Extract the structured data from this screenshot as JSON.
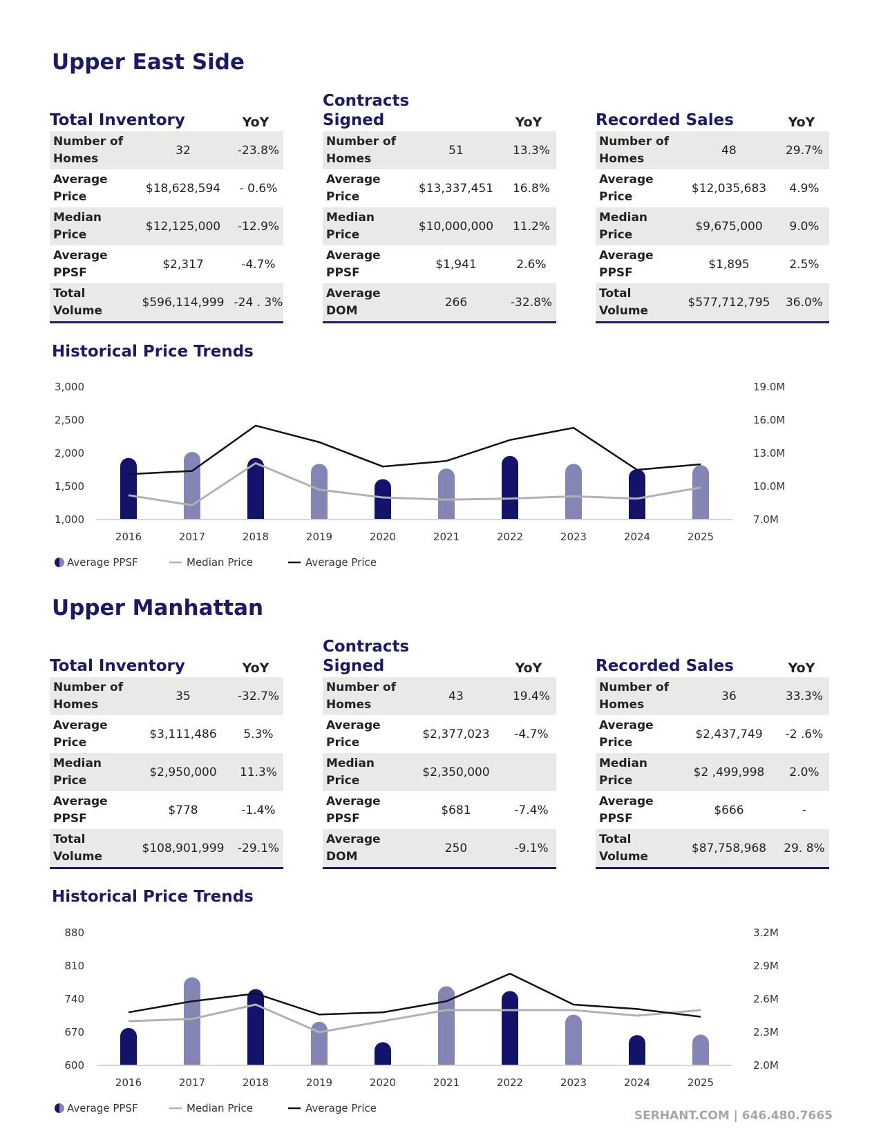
{
  "sections": [
    {
      "name": "Upper East Side",
      "blocks": [
        {
          "title": "Total Inventory",
          "yoy_label": "YoY",
          "rows": [
            {
              "label": "Number of Homes",
              "value": "32",
              "yoy": "-23.8%"
            },
            {
              "label": "Average Price",
              "value": "$18,628,594",
              "yoy": "- 0.6%"
            },
            {
              "label": "Median Price",
              "value": "$12,125,000",
              "yoy": "-12.9%"
            },
            {
              "label": "Average PPSF",
              "value": "$2,317",
              "yoy": "-4.7%"
            },
            {
              "label": "Total Volume",
              "value": "$596,114,999",
              "yoy": "-24 . 3%"
            }
          ]
        },
        {
          "title": "Contracts Signed",
          "yoy_label": "YoY",
          "rows": [
            {
              "label": "Number of Homes",
              "value": "51",
              "yoy": "13.3%"
            },
            {
              "label": "Average Price",
              "value": "$13,337,451",
              "yoy": "16.8%"
            },
            {
              "label": "Median Price",
              "value": "$10,000,000",
              "yoy": "11.2%"
            },
            {
              "label": "Average PPSF",
              "value": "$1,941",
              "yoy": "2.6%"
            },
            {
              "label": "Average DOM",
              "value": "266",
              "yoy": "-32.8%"
            }
          ]
        },
        {
          "title": "Recorded Sales",
          "yoy_label": "YoY",
          "rows": [
            {
              "label": "Number of Homes",
              "value": "48",
              "yoy": "29.7%"
            },
            {
              "label": "Average Price",
              "value": "$12,035,683",
              "yoy": "4.9%"
            },
            {
              "label": "Median Price",
              "value": "$9,675,000",
              "yoy": "9.0%"
            },
            {
              "label": "Average PPSF",
              "value": "$1,895",
              "yoy": "2.5%"
            },
            {
              "label": "Total Volume",
              "value": "$577,712,795",
              "yoy": "36.0%"
            }
          ]
        }
      ],
      "trend_title": "Historical Price Trends"
    },
    {
      "name": "Upper Manhattan",
      "blocks": [
        {
          "title": "Total Inventory",
          "yoy_label": "YoY",
          "rows": [
            {
              "label": "Number of Homes",
              "value": "35",
              "yoy": "-32.7%"
            },
            {
              "label": "Average Price",
              "value": "$3,111,486",
              "yoy": "5.3%"
            },
            {
              "label": "Median Price",
              "value": "$2,950,000",
              "yoy": "11.3%"
            },
            {
              "label": "Average PPSF",
              "value": "$778",
              "yoy": "-1.4%"
            },
            {
              "label": "Total Volume",
              "value": "$108,901,999",
              "yoy": "-29.1%"
            }
          ]
        },
        {
          "title": "Contracts Signed",
          "yoy_label": "YoY",
          "rows": [
            {
              "label": "Number of Homes",
              "value": "43",
              "yoy": "19.4%"
            },
            {
              "label": "Average Price",
              "value": "$2,377,023",
              "yoy": "-4.7%"
            },
            {
              "label": "Median Price",
              "value": "$2,350,000",
              "yoy": ""
            },
            {
              "label": "Average PPSF",
              "value": "$681",
              "yoy": "-7.4%"
            },
            {
              "label": "Average DOM",
              "value": "250",
              "yoy": "-9.1%"
            }
          ]
        },
        {
          "title": "Recorded Sales",
          "yoy_label": "YoY",
          "rows": [
            {
              "label": "Number of Homes",
              "value": "36",
              "yoy": "33.3%"
            },
            {
              "label": "Average Price",
              "value": "$2,437,749",
              "yoy": "-2 .6%"
            },
            {
              "label": "Median Price",
              "value": "$2 ,499,998",
              "yoy": "2.0%"
            },
            {
              "label": "Average PPSF",
              "value": "$666",
              "yoy": "-"
            },
            {
              "label": "Total Volume",
              "value": "$87,758,968",
              "yoy": "29. 8%"
            }
          ]
        }
      ],
      "trend_title": "Historical Price Trends"
    }
  ],
  "chart_data": [
    {
      "type": "bar",
      "title": "Historical Price Trends",
      "categories": [
        "2016",
        "2017",
        "2018",
        "2019",
        "2020",
        "2021",
        "2022",
        "2023",
        "2024",
        "2025"
      ],
      "left_axis": {
        "ticks": [
          "3,000",
          "2,500",
          "2,000",
          "1,500",
          "1,000"
        ],
        "range": [
          1000,
          3000
        ]
      },
      "right_axis": {
        "ticks": [
          "19.0M",
          "16.0M",
          "13.0M",
          "10.0M",
          "7.0M"
        ],
        "range": [
          7.0,
          19.0
        ]
      },
      "series": [
        {
          "name": "Average PPSF",
          "kind": "bar",
          "axis": "left",
          "values": [
            1930,
            2020,
            1930,
            1840,
            1610,
            1770,
            1960,
            1840,
            1760,
            1820
          ]
        },
        {
          "name": "Median Price",
          "kind": "line",
          "axis": "right",
          "values": [
            9.2,
            8.3,
            12.1,
            9.7,
            9.0,
            8.8,
            8.9,
            9.1,
            8.9,
            9.9
          ]
        },
        {
          "name": "Average Price",
          "kind": "line",
          "axis": "right",
          "values": [
            11.1,
            11.4,
            15.5,
            14.0,
            11.8,
            12.3,
            14.2,
            15.3,
            11.5,
            12.0
          ]
        }
      ],
      "legend": [
        "Average PPSF",
        "Median Price",
        "Average Price"
      ],
      "colors": {
        "bar_dark": "#13136b",
        "bar_light": "#8484b5",
        "median": "#b1b1b1",
        "average": "#111111",
        "axis": "#d4d4d4"
      }
    },
    {
      "type": "bar",
      "title": "Historical Price Trends",
      "categories": [
        "2016",
        "2017",
        "2018",
        "2019",
        "2020",
        "2021",
        "2022",
        "2023",
        "2024",
        "2025"
      ],
      "left_axis": {
        "ticks": [
          "880",
          "810",
          "740",
          "670",
          "600"
        ],
        "range": [
          600,
          880
        ]
      },
      "right_axis": {
        "ticks": [
          "3.2M",
          "2.9M",
          "2.6M",
          "2.3M",
          "2.0M"
        ],
        "range": [
          2.0,
          3.2
        ]
      },
      "series": [
        {
          "name": "Average PPSF",
          "kind": "bar",
          "axis": "left",
          "values": [
            679,
            786,
            761,
            692,
            649,
            767,
            757,
            707,
            664,
            665
          ]
        },
        {
          "name": "Median Price",
          "kind": "line",
          "axis": "right",
          "values": [
            2.4,
            2.42,
            2.55,
            2.3,
            2.4,
            2.5,
            2.5,
            2.5,
            2.45,
            2.5
          ]
        },
        {
          "name": "Average Price",
          "kind": "line",
          "axis": "right",
          "values": [
            2.48,
            2.58,
            2.65,
            2.46,
            2.48,
            2.58,
            2.83,
            2.55,
            2.51,
            2.44
          ]
        }
      ],
      "legend": [
        "Average PPSF",
        "Median Price",
        "Average Price"
      ],
      "colors": {
        "bar_dark": "#13136b",
        "bar_light": "#8484b5",
        "median": "#b1b1b1",
        "average": "#111111",
        "axis": "#d4d4d4"
      }
    }
  ],
  "footer": "SERHANT.COM | 646.480.7665"
}
